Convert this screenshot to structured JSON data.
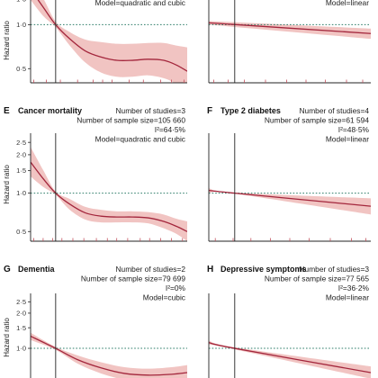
{
  "colors": {
    "curve": "#a3263c",
    "band": "#f1c4c2",
    "reference_line": "#2e7d6a",
    "axis": "#222222",
    "rug": "#c2505c"
  },
  "chart_data": [
    {
      "letter": "",
      "title": "",
      "type": "line",
      "stats": [
        "Model=quadratic and cubic"
      ],
      "ylabel": "Hazard ratio",
      "yscale": "log",
      "y_ticks": [
        "0·5",
        "1·0",
        "1·5"
      ],
      "x": [
        0,
        0.08,
        0.16,
        0.25,
        0.35,
        0.45,
        0.55,
        0.65,
        0.75,
        0.85,
        0.93,
        1.0
      ],
      "estimate": [
        1.75,
        1.32,
        1.0,
        0.8,
        0.66,
        0.6,
        0.57,
        0.57,
        0.58,
        0.57,
        0.53,
        0.48
      ],
      "lower": [
        1.48,
        1.15,
        0.96,
        0.72,
        0.55,
        0.47,
        0.44,
        0.44,
        0.45,
        0.43,
        0.39,
        0.32
      ],
      "upper": [
        2.1,
        1.52,
        1.05,
        0.89,
        0.79,
        0.76,
        0.74,
        0.74,
        0.75,
        0.75,
        0.72,
        0.7
      ],
      "reference_x": 0.16,
      "rug": [
        0.02,
        0.1,
        0.19,
        0.3,
        0.4,
        0.46,
        0.52,
        0.63,
        0.72,
        0.83,
        0.9,
        0.98
      ]
    },
    {
      "letter": "",
      "title": "",
      "type": "line",
      "stats": [
        "Model=linear"
      ],
      "ylabel": "",
      "yscale": "log",
      "y_ticks": [],
      "x": [
        0,
        1
      ],
      "estimate": [
        1.03,
        0.87
      ],
      "lower": [
        1.0,
        0.8
      ],
      "upper": [
        1.06,
        0.94
      ],
      "reference_x": 0.16,
      "rug": [
        0.03,
        0.12,
        0.22,
        0.35,
        0.48,
        0.6,
        0.72,
        0.85,
        0.95
      ]
    },
    {
      "letter": "E",
      "title": "Cancer mortality",
      "type": "line",
      "stats": [
        "Number of studies=3",
        "Number of sample size=105 660",
        "I²=64·5%",
        "Model=quadratic and cubic"
      ],
      "ylabel": "Hazard ratio",
      "yscale": "log",
      "y_ticks": [
        "0·5",
        "1·0",
        "1·5",
        "2·0",
        "2·5"
      ],
      "x": [
        0,
        0.08,
        0.16,
        0.25,
        0.35,
        0.45,
        0.55,
        0.65,
        0.75,
        0.85,
        0.93,
        1.0
      ],
      "estimate": [
        1.75,
        1.3,
        1.0,
        0.82,
        0.7,
        0.66,
        0.65,
        0.65,
        0.64,
        0.6,
        0.55,
        0.5
      ],
      "lower": [
        1.35,
        1.12,
        0.97,
        0.74,
        0.62,
        0.59,
        0.59,
        0.59,
        0.58,
        0.53,
        0.48,
        0.42
      ],
      "upper": [
        2.3,
        1.52,
        1.03,
        0.9,
        0.78,
        0.74,
        0.72,
        0.72,
        0.71,
        0.68,
        0.63,
        0.6
      ],
      "reference_x": 0.16,
      "rug": [
        0.02,
        0.08,
        0.14,
        0.2,
        0.27,
        0.34,
        0.42,
        0.49,
        0.55,
        0.62,
        0.7,
        0.76,
        0.83,
        0.9,
        0.97
      ]
    },
    {
      "letter": "F",
      "title": "Type 2 diabetes",
      "type": "line",
      "stats": [
        "Number of studies=4",
        "Number of sample size=61 594",
        "I²=48·5%",
        "Model=linear"
      ],
      "ylabel": "",
      "yscale": "log",
      "y_ticks": [],
      "x": [
        0,
        0.16,
        1
      ],
      "estimate": [
        1.05,
        1.0,
        0.79
      ],
      "lower": [
        1.01,
        0.99,
        0.68
      ],
      "upper": [
        1.09,
        1.01,
        0.91
      ],
      "reference_x": 0.16,
      "rug": [
        0.04,
        0.15,
        0.26,
        0.38,
        0.5,
        0.62,
        0.75,
        0.88,
        0.97
      ]
    },
    {
      "letter": "G",
      "title": "Dementia",
      "type": "line",
      "stats": [
        "Number of studies=2",
        "Number of sample size=79 699",
        "I²=0%",
        "Model=cubic"
      ],
      "ylabel": "Hazard ratio",
      "yscale": "log",
      "y_ticks": [
        "0·5",
        "1·0",
        "1·5",
        "2·0",
        "2·5"
      ],
      "x": [
        0,
        0.16,
        0.3,
        0.45,
        0.6,
        0.75,
        0.9,
        1.0
      ],
      "estimate": [
        1.27,
        1.0,
        0.8,
        0.68,
        0.61,
        0.59,
        0.6,
        0.62
      ],
      "lower": [
        1.18,
        0.97,
        0.74,
        0.61,
        0.54,
        0.52,
        0.52,
        0.53
      ],
      "upper": [
        1.36,
        1.03,
        0.87,
        0.76,
        0.69,
        0.67,
        0.69,
        0.72
      ],
      "reference_x": 0.16,
      "rug": []
    },
    {
      "letter": "H",
      "title": "Depressive symptoms",
      "type": "line",
      "stats": [
        "Number of studies=3",
        "Number of sample size=77 565",
        "I²=36·2%",
        "Model=linear"
      ],
      "ylabel": "",
      "yscale": "log",
      "y_ticks": [],
      "x": [
        0,
        0.16,
        1
      ],
      "estimate": [
        1.12,
        1.0,
        0.62
      ],
      "lower": [
        1.08,
        0.98,
        0.55
      ],
      "upper": [
        1.16,
        1.02,
        0.7
      ],
      "reference_x": 0.16,
      "rug": []
    }
  ]
}
